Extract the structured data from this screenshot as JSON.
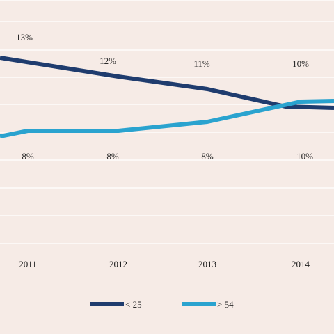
{
  "chart_data": {
    "type": "line",
    "categories": [
      "2011",
      "2012",
      "2013",
      "2014"
    ],
    "series": [
      {
        "name": "< 25",
        "color": "#1f3c6e",
        "values": [
          13,
          12,
          11,
          10
        ],
        "labels": [
          "13%",
          "12%",
          "11%",
          "10%"
        ]
      },
      {
        "name": "> 54",
        "color": "#2aa3cf",
        "values": [
          8,
          8,
          8,
          10
        ],
        "labels": [
          "8%",
          "8%",
          "8%",
          "10%"
        ]
      }
    ],
    "grid": true,
    "legend_position": "bottom",
    "background": "#f6ebe6"
  }
}
